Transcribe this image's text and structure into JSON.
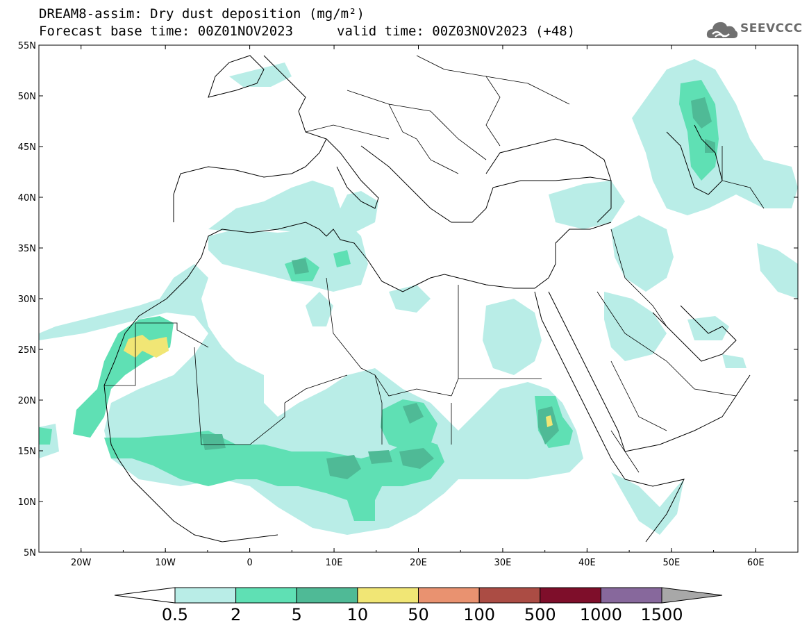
{
  "header": {
    "title_line1": "DREAM8-assim: Dry dust deposition (mg/m²)",
    "title_line2a": "Forecast base time: 00Z01NOV2023",
    "title_line2b": "valid time: 00Z03NOV2023 (+48)"
  },
  "logo": {
    "text": "SEEVCCC",
    "icon": "cloud-logo-icon"
  },
  "map": {
    "lon_range": [
      -25,
      65
    ],
    "lat_range": [
      5,
      55
    ],
    "lon_ticks": [
      "20W",
      "10W",
      "0",
      "10E",
      "20E",
      "30E",
      "40E",
      "50E",
      "60E"
    ],
    "lat_ticks": [
      "55N",
      "50N",
      "45N",
      "40N",
      "35N",
      "30N",
      "25N",
      "20N",
      "15N",
      "10N",
      "5N"
    ]
  },
  "legend": {
    "colors": [
      "#b9ede7",
      "#5fe0b4",
      "#4fba96",
      "#f1e675",
      "#e99270",
      "#ab4c44",
      "#7e0e2a",
      "#87689c",
      "#a8a8a8"
    ],
    "labels": [
      "0.5",
      "2",
      "5",
      "10",
      "50",
      "100",
      "500",
      "1000",
      "1500"
    ]
  }
}
